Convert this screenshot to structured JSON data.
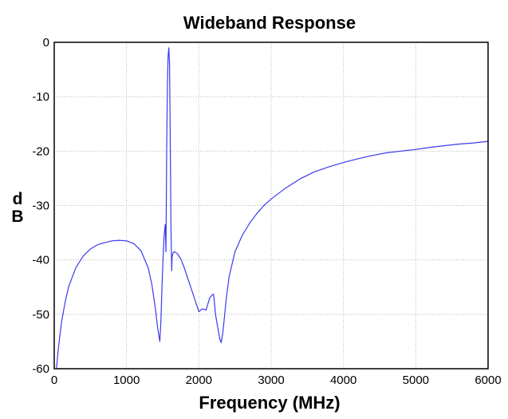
{
  "chart_data": {
    "type": "line",
    "title": "Wideband Response",
    "xlabel": "Frequency (MHz)",
    "ylabel_parts": [
      "d",
      "B"
    ],
    "xlim": [
      0,
      6000
    ],
    "ylim": [
      -60,
      0
    ],
    "xticks": [
      "0",
      "1000",
      "2000",
      "3000",
      "4000",
      "5000",
      "6000"
    ],
    "yticks": [
      "0",
      "-10",
      "-20",
      "-30",
      "-40",
      "-50",
      "-60"
    ],
    "xtick_values": [
      0,
      1000,
      2000,
      3000,
      4000,
      5000,
      6000
    ],
    "ytick_values": [
      0,
      -10,
      -20,
      -30,
      -40,
      -50,
      -60
    ],
    "grid": true,
    "series": [
      {
        "color": "#3a3aee",
        "x": [
          30,
          60,
          100,
          150,
          200,
          300,
          400,
          500,
          600,
          700,
          800,
          900,
          1000,
          1100,
          1200,
          1300,
          1350,
          1400,
          1430,
          1460,
          1475,
          1490,
          1505,
          1520,
          1535,
          1545,
          1555,
          1565,
          1575,
          1585,
          1595,
          1605,
          1615,
          1625,
          1630,
          1640,
          1660,
          1700,
          1750,
          1800,
          1850,
          1900,
          1950,
          2000,
          2050,
          2100,
          2150,
          2180,
          2200,
          2210,
          2220,
          2230,
          2250,
          2270,
          2290,
          2310,
          2330,
          2350,
          2380,
          2420,
          2500,
          2600,
          2700,
          2800,
          2900,
          3000,
          3200,
          3400,
          3600,
          3800,
          4000,
          4200,
          4400,
          4600,
          4800,
          5000,
          5200,
          5400,
          5600,
          5800,
          6000
        ],
        "y": [
          -60,
          -56,
          -51.5,
          -47.8,
          -44.9,
          -41.4,
          -39.3,
          -38.0,
          -37.2,
          -36.8,
          -36.5,
          -36.4,
          -36.5,
          -37.0,
          -38.3,
          -41.5,
          -44.5,
          -49.0,
          -52.5,
          -55.0,
          -51.5,
          -45.0,
          -39.5,
          -35.5,
          -33.5,
          -38.5,
          -20.0,
          -8.0,
          -2.5,
          -1.0,
          -4.0,
          -18.0,
          -34.0,
          -42.0,
          -39.5,
          -38.8,
          -38.5,
          -38.8,
          -39.8,
          -41.5,
          -43.5,
          -45.5,
          -47.5,
          -49.5,
          -49.0,
          -49.2,
          -47.0,
          -46.5,
          -46.3,
          -47.0,
          -48.5,
          -50.0,
          -51.5,
          -53.0,
          -54.5,
          -55.2,
          -53.5,
          -51.0,
          -47.0,
          -43.0,
          -38.5,
          -35.5,
          -33.3,
          -31.5,
          -30.0,
          -28.8,
          -26.8,
          -25.1,
          -23.8,
          -22.9,
          -22.1,
          -21.4,
          -20.8,
          -20.3,
          -20.0,
          -19.7,
          -19.3,
          -19.0,
          -18.7,
          -18.5,
          -18.2
        ]
      }
    ]
  }
}
